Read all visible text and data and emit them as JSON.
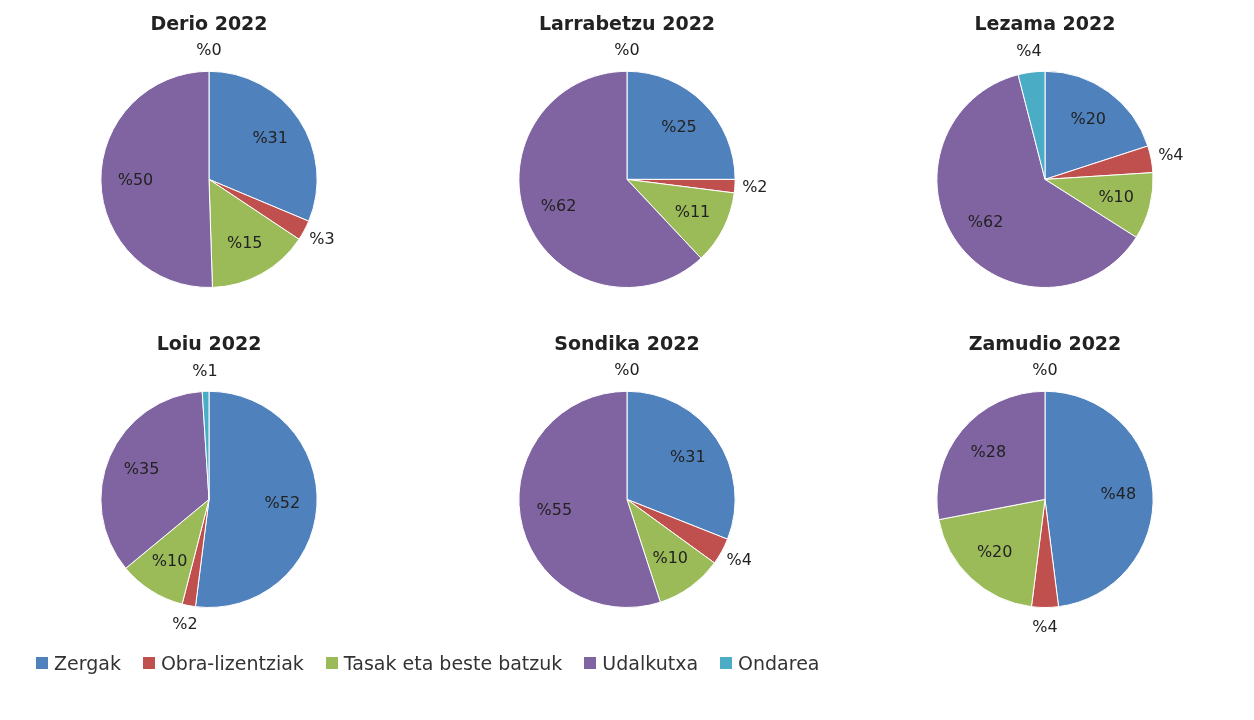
{
  "chart_data": [
    {
      "type": "pie",
      "title": "Derio 2022",
      "categories": [
        "Zergak",
        "Obra-lizentziak",
        "Tasak eta beste batzuk",
        "Udalkutxa",
        "Ondarea"
      ],
      "values": [
        31,
        3,
        15,
        50,
        0
      ],
      "colors": [
        "#4f81bd",
        "#c0504d",
        "#9bbb59",
        "#8064a2",
        "#4bacc6"
      ],
      "value_labels": [
        "%31",
        "%3",
        "%15",
        "%50",
        "%0"
      ],
      "legend": "bottom"
    },
    {
      "type": "pie",
      "title": "Larrabetzu 2022",
      "values": [
        25,
        2,
        11,
        62,
        0
      ],
      "colors": [
        "#4f81bd",
        "#c0504d",
        "#9bbb59",
        "#8064a2",
        "#4bacc6"
      ],
      "value_labels": [
        "%25",
        "%2",
        "%11",
        "%62",
        "%0"
      ]
    },
    {
      "type": "pie",
      "title": "Lezama 2022",
      "values": [
        20,
        4,
        10,
        62,
        4
      ],
      "colors": [
        "#4f81bd",
        "#c0504d",
        "#9bbb59",
        "#8064a2",
        "#4bacc6"
      ],
      "value_labels": [
        "%20",
        "%4",
        "%10",
        "%62",
        "%4"
      ]
    },
    {
      "type": "pie",
      "title": "Loiu 2022",
      "values": [
        52,
        2,
        10,
        35,
        1
      ],
      "colors": [
        "#4f81bd",
        "#c0504d",
        "#9bbb59",
        "#8064a2",
        "#4bacc6"
      ],
      "value_labels": [
        "%52",
        "%2",
        "%10",
        "%35",
        "%1"
      ]
    },
    {
      "type": "pie",
      "title": "Sondika 2022",
      "values": [
        31,
        4,
        10,
        55,
        0
      ],
      "colors": [
        "#4f81bd",
        "#c0504d",
        "#9bbb59",
        "#8064a2",
        "#4bacc6"
      ],
      "value_labels": [
        "%31",
        "%4",
        "%10",
        "%55",
        "%0"
      ]
    },
    {
      "type": "pie",
      "title": "Zamudio 2022",
      "values": [
        48,
        4,
        20,
        28,
        0
      ],
      "colors": [
        "#4f81bd",
        "#c0504d",
        "#9bbb59",
        "#8064a2",
        "#4bacc6"
      ],
      "value_labels": [
        "%48",
        "%4",
        "%20",
        "%28",
        "%0"
      ]
    }
  ]
}
